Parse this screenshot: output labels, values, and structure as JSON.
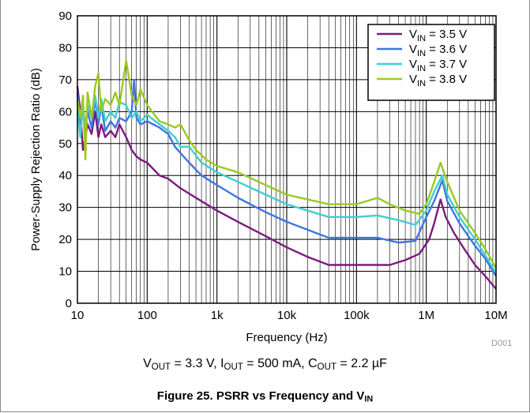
{
  "chart_data": {
    "type": "line",
    "x_scale": "log",
    "xlim": [
      10,
      10000000
    ],
    "ylim": [
      0,
      90
    ],
    "grid": true,
    "legend_position": "top-right",
    "xlabel": "Frequency (Hz)",
    "ylabel": "Power-Supply Rejection Ratio (dB)",
    "x_tick_labels": [
      "10",
      "100",
      "1k",
      "10k",
      "100k",
      "1M",
      "10M"
    ],
    "y_tick_labels": [
      "0",
      "10",
      "20",
      "30",
      "40",
      "50",
      "60",
      "70",
      "80",
      "90"
    ],
    "chart_id": "D001",
    "conditions": {
      "vout_sym": "V",
      "vout_sub": "OUT",
      "vout_val": " = 3.3 V, ",
      "iout_sym": "I",
      "iout_sub": "OUT",
      "iout_val": " = 500 mA, ",
      "cout_sym": "C",
      "cout_sub": "OUT",
      "cout_val": " = 2.2 µF"
    },
    "caption": {
      "main": "Figure 25. PSRR vs Frequency and V",
      "sub": "IN"
    },
    "series": [
      {
        "label_sym": "V",
        "label_sub": "IN",
        "label_val": " = 3.5 V",
        "color": "#7b1a7e",
        "points": [
          [
            10,
            68
          ],
          [
            11,
            60
          ],
          [
            12,
            48
          ],
          [
            13,
            52
          ],
          [
            14,
            56
          ],
          [
            16,
            53
          ],
          [
            18,
            60
          ],
          [
            20,
            52
          ],
          [
            22,
            56
          ],
          [
            25,
            52
          ],
          [
            30,
            54
          ],
          [
            35,
            52
          ],
          [
            40,
            56
          ],
          [
            50,
            52
          ],
          [
            60,
            48
          ],
          [
            70,
            46
          ],
          [
            80,
            45
          ],
          [
            100,
            44
          ],
          [
            150,
            40
          ],
          [
            200,
            39
          ],
          [
            300,
            36
          ],
          [
            500,
            33
          ],
          [
            1000,
            29
          ],
          [
            2000,
            25.5
          ],
          [
            5000,
            21
          ],
          [
            10000,
            17.5
          ],
          [
            20000,
            14.5
          ],
          [
            40000,
            12
          ],
          [
            100000,
            12
          ],
          [
            200000,
            12
          ],
          [
            300000,
            12
          ],
          [
            500000,
            13.5
          ],
          [
            800000,
            15.5
          ],
          [
            1100000,
            20
          ],
          [
            1300000,
            25
          ],
          [
            1600000,
            32.5
          ],
          [
            1900000,
            27
          ],
          [
            2500000,
            22
          ],
          [
            3500000,
            17
          ],
          [
            5000000,
            12
          ],
          [
            7000000,
            8.5
          ],
          [
            10000000,
            4.5
          ]
        ]
      },
      {
        "label_sym": "V",
        "label_sub": "IN",
        "label_val": " = 3.6 V",
        "color": "#3f74e3",
        "points": [
          [
            10,
            66
          ],
          [
            11,
            56
          ],
          [
            12,
            62
          ],
          [
            13,
            54
          ],
          [
            14,
            60
          ],
          [
            16,
            55
          ],
          [
            18,
            64
          ],
          [
            20,
            56
          ],
          [
            22,
            62
          ],
          [
            25,
            54
          ],
          [
            30,
            57
          ],
          [
            35,
            55
          ],
          [
            40,
            58
          ],
          [
            50,
            57
          ],
          [
            60,
            60
          ],
          [
            65,
            70
          ],
          [
            70,
            58
          ],
          [
            80,
            56
          ],
          [
            100,
            57
          ],
          [
            150,
            55
          ],
          [
            200,
            53
          ],
          [
            250,
            49
          ],
          [
            300,
            47
          ],
          [
            400,
            44
          ],
          [
            600,
            40
          ],
          [
            1000,
            37
          ],
          [
            2000,
            33
          ],
          [
            5000,
            28.5
          ],
          [
            10000,
            25.5
          ],
          [
            20000,
            23
          ],
          [
            40000,
            20.5
          ],
          [
            100000,
            20.5
          ],
          [
            200000,
            20.5
          ],
          [
            400000,
            19
          ],
          [
            700000,
            19.5
          ],
          [
            1000000,
            27
          ],
          [
            1300000,
            32
          ],
          [
            1700000,
            38.5
          ],
          [
            2000000,
            32
          ],
          [
            3000000,
            25
          ],
          [
            5000000,
            18
          ],
          [
            7000000,
            14
          ],
          [
            10000000,
            8.5
          ]
        ]
      },
      {
        "label_sym": "V",
        "label_sub": "IN",
        "label_val": " = 3.7 V",
        "color": "#3fcfcf",
        "points": [
          [
            10,
            60
          ],
          [
            11,
            52
          ],
          [
            12,
            62
          ],
          [
            13,
            55
          ],
          [
            14,
            62
          ],
          [
            16,
            58
          ],
          [
            18,
            65
          ],
          [
            20,
            58
          ],
          [
            22,
            64
          ],
          [
            25,
            57
          ],
          [
            30,
            60
          ],
          [
            35,
            58
          ],
          [
            40,
            63
          ],
          [
            50,
            62
          ],
          [
            60,
            58
          ],
          [
            70,
            60
          ],
          [
            80,
            57
          ],
          [
            100,
            59
          ],
          [
            150,
            56
          ],
          [
            200,
            54
          ],
          [
            250,
            52
          ],
          [
            300,
            49
          ],
          [
            400,
            49
          ],
          [
            600,
            44
          ],
          [
            1000,
            41
          ],
          [
            2000,
            38
          ],
          [
            5000,
            34
          ],
          [
            10000,
            31
          ],
          [
            20000,
            29
          ],
          [
            40000,
            27
          ],
          [
            100000,
            27
          ],
          [
            200000,
            27.5
          ],
          [
            400000,
            26
          ],
          [
            700000,
            24.5
          ],
          [
            1000000,
            29
          ],
          [
            1300000,
            35
          ],
          [
            1700000,
            40
          ],
          [
            2000000,
            34
          ],
          [
            3000000,
            27
          ],
          [
            5000000,
            20
          ],
          [
            7000000,
            15
          ],
          [
            10000000,
            9.5
          ]
        ]
      },
      {
        "label_sym": "V",
        "label_sub": "IN",
        "label_val": " = 3.8 V",
        "color": "#9bc823",
        "points": [
          [
            10,
            64
          ],
          [
            11,
            58
          ],
          [
            12,
            65
          ],
          [
            13,
            45
          ],
          [
            14,
            66
          ],
          [
            16,
            58
          ],
          [
            18,
            68
          ],
          [
            20,
            72
          ],
          [
            22,
            60
          ],
          [
            25,
            64
          ],
          [
            30,
            62
          ],
          [
            35,
            66
          ],
          [
            40,
            62
          ],
          [
            50,
            76
          ],
          [
            60,
            65
          ],
          [
            70,
            62
          ],
          [
            80,
            67
          ],
          [
            100,
            62
          ],
          [
            150,
            57
          ],
          [
            200,
            56
          ],
          [
            250,
            55
          ],
          [
            300,
            56
          ],
          [
            400,
            51
          ],
          [
            500,
            48
          ],
          [
            700,
            45
          ],
          [
            1000,
            43
          ],
          [
            2000,
            41
          ],
          [
            5000,
            37
          ],
          [
            10000,
            34
          ],
          [
            20000,
            32.5
          ],
          [
            40000,
            31
          ],
          [
            100000,
            31
          ],
          [
            200000,
            33
          ],
          [
            300000,
            31
          ],
          [
            500000,
            29
          ],
          [
            800000,
            28
          ],
          [
            1000000,
            31
          ],
          [
            1300000,
            38
          ],
          [
            1600000,
            44
          ],
          [
            2000000,
            38
          ],
          [
            3000000,
            29
          ],
          [
            5000000,
            22
          ],
          [
            7000000,
            17
          ],
          [
            10000000,
            11
          ]
        ]
      }
    ]
  }
}
